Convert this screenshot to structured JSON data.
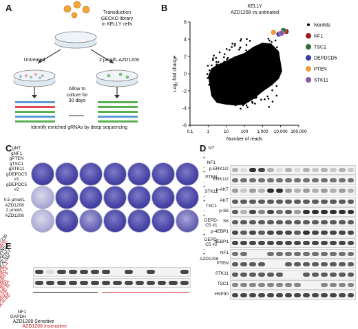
{
  "panels": {
    "a": "A",
    "b": "B",
    "c": "C",
    "d": "D",
    "e": "E"
  },
  "panelA": {
    "top": [
      "Transduction",
      "GECKO library",
      "in KELLY cells"
    ],
    "left_arm": "Untreated",
    "right_arm": "2 μmol/L AZD1208",
    "middle": [
      "Allow to",
      "culture for",
      "30 days"
    ],
    "bottom": "Identify enriched gRNAs by deep sequencing"
  },
  "panelB": {
    "title_line1": "KELLY",
    "title_line2": "AZD1208 vs.untreated",
    "legend": [
      {
        "label": "Nonhits",
        "color": "#000000"
      },
      {
        "label": "NF1",
        "color": "#9b1c1c"
      },
      {
        "label": "TSC1",
        "color": "#2f6a2f"
      },
      {
        "label": "DEPDCD5",
        "color": "#3b3aa0"
      },
      {
        "label": "PTEN",
        "color": "#f09a3a"
      },
      {
        "label": "STK11",
        "color": "#8c55a6"
      }
    ]
  },
  "chart_data": {
    "type": "scatter",
    "title": "KELLY AZD1208 vs.untreated",
    "xlabel": "Number of reads",
    "ylabel": "Log2 fold change",
    "xscale": "log",
    "xlim": [
      0.1,
      100000
    ],
    "ylim": [
      -6,
      6
    ],
    "x_ticks": [
      "0.1",
      "1",
      "10",
      "100",
      "1,000",
      "10,000",
      "100,000"
    ],
    "y_ticks": [
      "-6",
      "-4",
      "-2",
      "0",
      "2",
      "4",
      "6"
    ],
    "legend_position": "right",
    "series": [
      {
        "name": "NF1",
        "x": [
          20000
        ],
        "y": [
          4.9
        ]
      },
      {
        "name": "TSC1",
        "x": [
          14000
        ],
        "y": [
          5.0
        ]
      },
      {
        "name": "DEPDCD5",
        "x": [
          8000
        ],
        "y": [
          4.6
        ]
      },
      {
        "name": "PTEN",
        "x": [
          4000
        ],
        "y": [
          4.8
        ]
      },
      {
        "name": "STK11",
        "x": [
          11000
        ],
        "y": [
          4.7
        ]
      }
    ]
  },
  "panelC": {
    "columns": [
      "gNT",
      "gNF1",
      "gPTEN",
      "gTSC1",
      "gSTK11",
      "gDEPDC5\n#1",
      "gDEPDC5\n#2"
    ],
    "rows": [
      "-",
      "0.5 μmol/L\nAZD1208",
      "2 μmol/L\nAZD1208"
    ]
  },
  "panelD": {
    "groups": [
      "NT",
      "NF1",
      "PTEN",
      "STK11",
      "TSC1",
      "DEPD-\nC5 #1",
      "DEPD-\nC5 #2"
    ],
    "treatment": [
      "-",
      "+"
    ],
    "treatment_label": "AZD1208",
    "rows": [
      "p-ERK1/2",
      "ERK1/2",
      "p-AKT",
      "AKT",
      "p-S6",
      "S6",
      "p-4EBP1",
      "4EBP1",
      "NF1",
      "PTEN",
      "STK11",
      "TSC1",
      "HSP90"
    ]
  },
  "panelE": {
    "lines_sensitive": [
      "HT230",
      "IMR32",
      "LAN5",
      "KELLY",
      "SH-SY5Y",
      "SK-N-SH"
    ],
    "lines_insensitive": [
      "NB90-4",
      "NB90-6",
      "NB90-9",
      "NB89",
      "CLB-MA",
      "GI-ME-N",
      "SKNAS",
      "SK-N-BE"
    ],
    "red_lines": [
      "IMR32"
    ],
    "rows": [
      "NF1",
      "GAPDH"
    ],
    "sensitive_label": "AZD1208 Sensitive",
    "insensitive_label": "AZD1208 Insensitive",
    "sensitive_color": "#111111",
    "insensitive_color": "#cc1e1e"
  }
}
